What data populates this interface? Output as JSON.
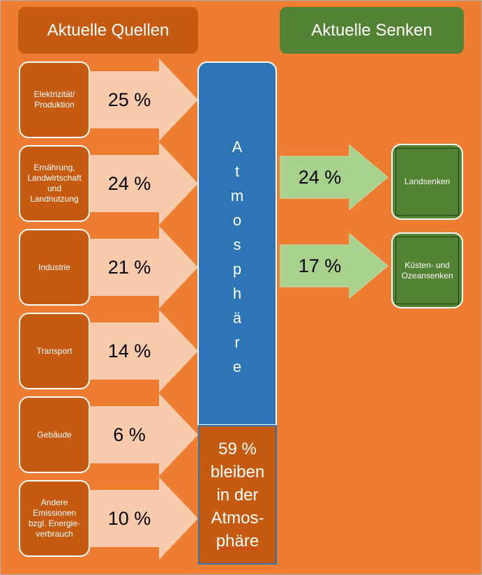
{
  "headers": {
    "sources": "Aktuelle Quellen",
    "sinks": "Aktuelle Senken"
  },
  "sources": [
    {
      "lines": [
        "Elektrizität/",
        "Produktion"
      ],
      "percent": "25 %"
    },
    {
      "lines": [
        "Ernährung,",
        "Landwirtschaft",
        "und",
        "Landnutzung"
      ],
      "percent": "24 %"
    },
    {
      "lines": [
        "Industrie"
      ],
      "percent": "21 %"
    },
    {
      "lines": [
        "Transport"
      ],
      "percent": "14 %"
    },
    {
      "lines": [
        "Gebäude"
      ],
      "percent": "6 %"
    },
    {
      "lines": [
        "Andere",
        "Emissionen",
        "bzgl. Energie-",
        "verbrauch"
      ],
      "percent": "10 %"
    }
  ],
  "atmosphere": {
    "letters": [
      "A",
      "t",
      "m",
      "o",
      "s",
      "p",
      "h",
      "ä",
      "r",
      "e"
    ]
  },
  "remaining": {
    "lines": [
      "59 %",
      "bleiben",
      "in der",
      "Atmos-",
      "phäre"
    ]
  },
  "sinks": [
    {
      "lines": [
        "Landsenken"
      ],
      "percent": "24 %"
    },
    {
      "lines": [
        "Küsten- und",
        "Ozeansenken"
      ],
      "percent": "17 %"
    }
  ],
  "colors": {
    "background": "#ed7d31",
    "source_box": "#c55a11",
    "sink_box": "#548235",
    "atmosphere": "#2e75b6",
    "source_arrow": "#f8cbad",
    "sink_arrow": "#a9d18e"
  }
}
